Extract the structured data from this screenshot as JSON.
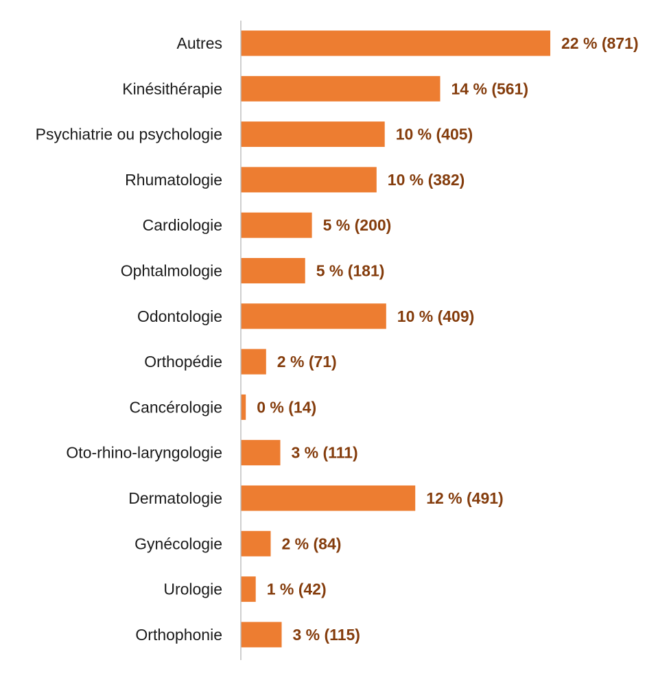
{
  "chart_data": {
    "type": "bar",
    "orientation": "horizontal",
    "categories": [
      "Autres",
      "Kinésithérapie",
      "Psychiatrie ou psychologie",
      "Rhumatologie",
      "Cardiologie",
      "Ophtalmologie",
      "Odontologie",
      "Orthopédie",
      "Cancérologie",
      "Oto-rhino-laryngologie",
      "Dermatologie",
      "Gynécologie",
      "Urologie",
      "Orthophonie"
    ],
    "values": [
      871,
      561,
      405,
      382,
      200,
      181,
      409,
      71,
      14,
      111,
      491,
      84,
      42,
      115
    ],
    "data_labels": [
      "22 % (871)",
      "14 % (561)",
      "10 % (405)",
      "10 % (382)",
      "5 % (200)",
      "5 % (181)",
      "10 % (409)",
      "2 % (71)",
      "0 % (14)",
      "3 % (111)",
      "12 % (491)",
      "2 % (84)",
      "1 % (42)",
      "3 % (115)"
    ],
    "title": "",
    "xlabel": "",
    "ylabel": "",
    "xlim": [
      0,
      871
    ],
    "grid": false,
    "legend": "none",
    "bar_color": "#ED7D31",
    "label_color": "#843C0C",
    "axis_color": "#BFBFBF"
  }
}
